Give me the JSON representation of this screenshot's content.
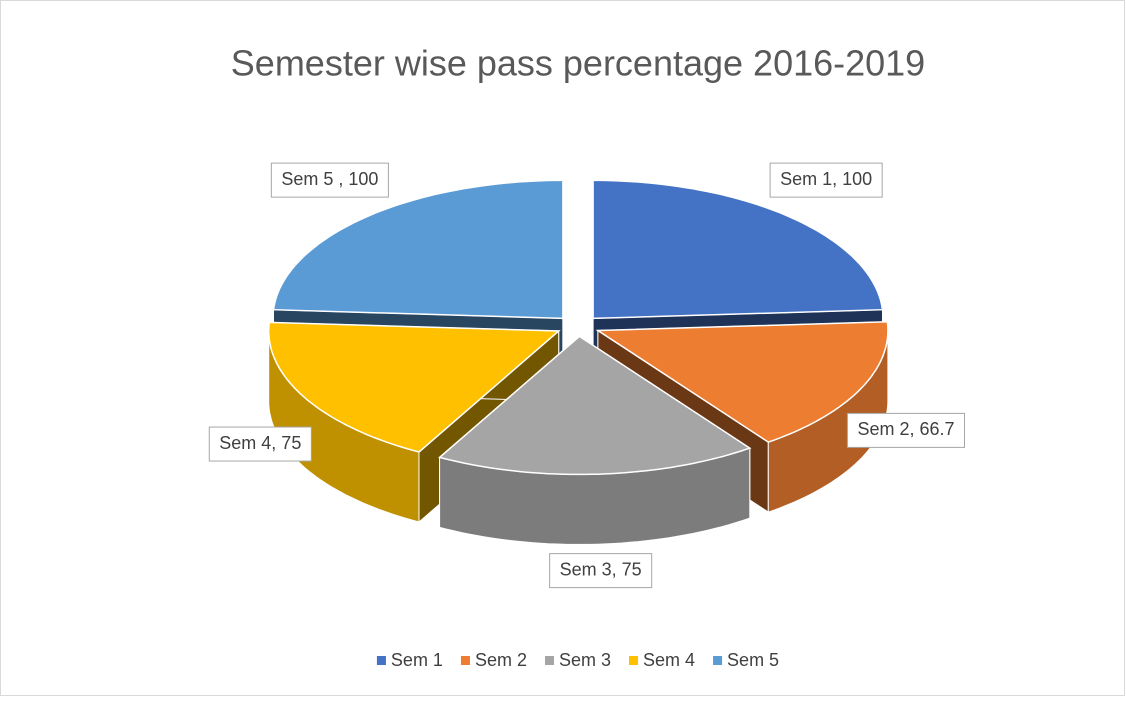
{
  "chart_data": {
    "type": "pie",
    "title": "Semester wise pass percentage 2016-2019",
    "categories": [
      "Sem 1",
      "Sem 2",
      "Sem 3",
      "Sem 4",
      "Sem 5"
    ],
    "values": [
      100,
      66.7,
      75,
      75,
      100
    ],
    "value_labels": [
      "Sem 1, 100",
      "Sem 2, 66.7",
      "Sem 3, 75",
      "Sem 4, 75",
      "Sem 5 , 100"
    ],
    "colors": [
      "#4472c4",
      "#ed7d31",
      "#a5a5a5",
      "#ffc000",
      "#5b9bd5"
    ],
    "legend": "bottom"
  }
}
